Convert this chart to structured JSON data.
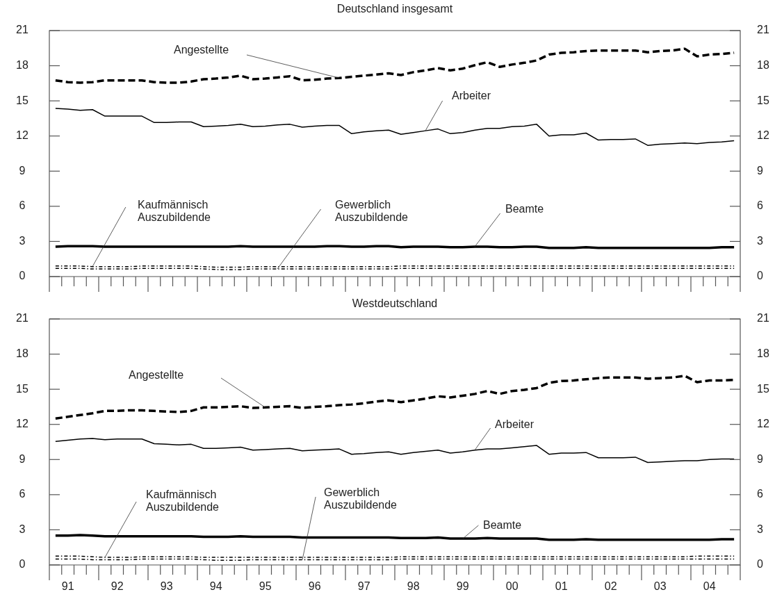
{
  "chart_data": [
    {
      "type": "line",
      "title": "Deutschland insgesamt",
      "legend": false,
      "marker": "none",
      "categories": [
        null,
        null,
        null,
        null,
        null,
        null,
        null,
        null,
        null,
        null,
        null,
        null,
        null,
        null,
        null,
        null,
        null,
        null,
        null,
        null,
        null,
        null,
        null,
        null,
        null,
        null,
        null,
        null,
        null,
        null,
        null,
        null,
        null,
        null,
        null,
        null,
        null,
        null,
        null,
        null,
        null,
        null,
        null,
        null,
        null,
        null,
        null,
        null,
        null,
        null,
        null,
        null,
        null,
        null,
        null,
        null
      ],
      "ylim": [
        0,
        21
      ],
      "yticks": [
        0,
        3,
        6,
        9,
        12,
        15,
        18,
        21
      ],
      "y2lim": [
        0,
        21
      ],
      "y2ticks": [
        0,
        3,
        6,
        9,
        12,
        15,
        18,
        21
      ],
      "series": [
        {
          "name": "Angestellte",
          "color": "#000000",
          "line_style": "dashed",
          "values": [
            16.75,
            16.6,
            16.55,
            16.6,
            16.75,
            16.75,
            16.75,
            16.75,
            16.6,
            16.55,
            16.55,
            16.65,
            16.85,
            16.9,
            17.0,
            17.15,
            16.85,
            16.9,
            17.0,
            17.1,
            16.75,
            16.8,
            16.9,
            16.95,
            17.05,
            17.15,
            17.25,
            17.35,
            17.2,
            17.45,
            17.6,
            17.8,
            17.6,
            17.75,
            18.05,
            18.3,
            17.9,
            18.1,
            18.25,
            18.45,
            18.95,
            19.1,
            19.15,
            19.25,
            19.3,
            19.3,
            19.3,
            19.3,
            19.15,
            19.25,
            19.3,
            19.45,
            18.8,
            18.95,
            19.0,
            19.1
          ]
        },
        {
          "name": "Arbeiter",
          "color": "#000000",
          "line_style": "solid",
          "values": [
            14.35,
            14.3,
            14.2,
            14.25,
            13.7,
            13.7,
            13.7,
            13.7,
            13.15,
            13.15,
            13.2,
            13.2,
            12.8,
            12.85,
            12.9,
            13.0,
            12.8,
            12.85,
            12.95,
            13.0,
            12.75,
            12.85,
            12.9,
            12.9,
            12.2,
            12.35,
            12.45,
            12.5,
            12.15,
            12.3,
            12.45,
            12.6,
            12.2,
            12.3,
            12.5,
            12.65,
            12.65,
            12.8,
            12.85,
            13.0,
            12.0,
            12.1,
            12.1,
            12.25,
            11.65,
            11.7,
            11.7,
            11.75,
            11.2,
            11.3,
            11.35,
            11.4,
            11.35,
            11.45,
            11.5,
            11.6
          ]
        },
        {
          "name": "Beamte",
          "color": "#000000",
          "line_style": "solid",
          "values": [
            2.55,
            2.6,
            2.6,
            2.6,
            2.55,
            2.55,
            2.55,
            2.55,
            2.55,
            2.55,
            2.55,
            2.55,
            2.55,
            2.55,
            2.55,
            2.6,
            2.55,
            2.55,
            2.55,
            2.55,
            2.55,
            2.55,
            2.6,
            2.6,
            2.55,
            2.55,
            2.6,
            2.6,
            2.5,
            2.55,
            2.55,
            2.55,
            2.5,
            2.5,
            2.55,
            2.55,
            2.5,
            2.5,
            2.55,
            2.55,
            2.45,
            2.45,
            2.45,
            2.5,
            2.45,
            2.45,
            2.45,
            2.45,
            2.45,
            2.45,
            2.45,
            2.45,
            2.45,
            2.45,
            2.5,
            2.5
          ]
        },
        {
          "name": "Kaufmännisch Auszubildende",
          "color": "#000000",
          "line_style": "dotted",
          "values": [
            0.9,
            0.9,
            0.9,
            0.85,
            0.85,
            0.85,
            0.85,
            0.9,
            0.9,
            0.9,
            0.9,
            0.9,
            0.85,
            0.8,
            0.8,
            0.8,
            0.85,
            0.85,
            0.85,
            0.85,
            0.85,
            0.85,
            0.85,
            0.85,
            0.85,
            0.85,
            0.85,
            0.85,
            0.9,
            0.9,
            0.9,
            0.9,
            0.9,
            0.9,
            0.9,
            0.9,
            0.9,
            0.9,
            0.9,
            0.9,
            0.9,
            0.9,
            0.9,
            0.9,
            0.9,
            0.9,
            0.9,
            0.9,
            0.9,
            0.9,
            0.9,
            0.9,
            0.9,
            0.9,
            0.9,
            0.9
          ]
        },
        {
          "name": "Gewerblich Auszubildende",
          "color": "#000000",
          "line_style": "dotted",
          "values": [
            0.7,
            0.7,
            0.7,
            0.65,
            0.65,
            0.65,
            0.65,
            0.7,
            0.7,
            0.7,
            0.7,
            0.7,
            0.65,
            0.6,
            0.6,
            0.6,
            0.65,
            0.65,
            0.65,
            0.65,
            0.65,
            0.65,
            0.65,
            0.65,
            0.65,
            0.65,
            0.65,
            0.65,
            0.7,
            0.7,
            0.7,
            0.7,
            0.7,
            0.7,
            0.7,
            0.7,
            0.7,
            0.7,
            0.7,
            0.7,
            0.7,
            0.7,
            0.7,
            0.7,
            0.7,
            0.7,
            0.7,
            0.7,
            0.7,
            0.7,
            0.7,
            0.7,
            0.7,
            0.7,
            0.7,
            0.7
          ]
        }
      ]
    },
    {
      "type": "line",
      "title": "Westdeutschland",
      "legend": false,
      "marker": "none",
      "categories": [
        null,
        "91",
        null,
        null,
        null,
        "92",
        null,
        null,
        null,
        "93",
        null,
        null,
        null,
        "94",
        null,
        null,
        null,
        "95",
        null,
        null,
        null,
        "96",
        null,
        null,
        null,
        "97",
        null,
        null,
        null,
        "98",
        null,
        null,
        null,
        "99",
        null,
        null,
        null,
        "00",
        null,
        null,
        null,
        "01",
        null,
        null,
        null,
        "02",
        null,
        null,
        null,
        "03",
        null,
        null,
        null,
        "04",
        null,
        null
      ],
      "ylim": [
        0,
        21
      ],
      "yticks": [
        0,
        3,
        6,
        9,
        12,
        15,
        18,
        21
      ],
      "y2lim": [
        0,
        21
      ],
      "y2ticks": [
        0,
        3,
        6,
        9,
        12,
        15,
        18,
        21
      ],
      "series": [
        {
          "name": "Angestellte",
          "color": "#000000",
          "line_style": "dashed",
          "values": [
            12.5,
            12.65,
            12.8,
            12.95,
            13.15,
            13.15,
            13.2,
            13.2,
            13.15,
            13.1,
            13.05,
            13.15,
            13.45,
            13.45,
            13.5,
            13.55,
            13.4,
            13.45,
            13.5,
            13.55,
            13.4,
            13.5,
            13.55,
            13.65,
            13.7,
            13.8,
            13.95,
            14.05,
            13.9,
            14.05,
            14.2,
            14.4,
            14.3,
            14.45,
            14.6,
            14.85,
            14.6,
            14.85,
            14.95,
            15.1,
            15.55,
            15.7,
            15.75,
            15.85,
            15.95,
            16.0,
            16.0,
            16.0,
            15.9,
            15.95,
            16.0,
            16.15,
            15.6,
            15.75,
            15.75,
            15.8
          ]
        },
        {
          "name": "Arbeiter",
          "color": "#000000",
          "line_style": "solid",
          "values": [
            10.55,
            10.65,
            10.75,
            10.8,
            10.7,
            10.75,
            10.75,
            10.75,
            10.35,
            10.3,
            10.25,
            10.3,
            9.95,
            9.95,
            10.0,
            10.05,
            9.8,
            9.85,
            9.9,
            9.95,
            9.75,
            9.8,
            9.85,
            9.9,
            9.45,
            9.5,
            9.6,
            9.65,
            9.45,
            9.6,
            9.7,
            9.8,
            9.55,
            9.65,
            9.8,
            9.9,
            9.9,
            10.0,
            10.1,
            10.2,
            9.45,
            9.55,
            9.55,
            9.6,
            9.15,
            9.15,
            9.15,
            9.2,
            8.75,
            8.8,
            8.85,
            8.9,
            8.9,
            9.0,
            9.05,
            9.05
          ]
        },
        {
          "name": "Beamte",
          "color": "#000000",
          "line_style": "solid",
          "values": [
            2.5,
            2.5,
            2.55,
            2.5,
            2.45,
            2.45,
            2.45,
            2.45,
            2.45,
            2.45,
            2.45,
            2.45,
            2.4,
            2.4,
            2.4,
            2.45,
            2.4,
            2.4,
            2.4,
            2.4,
            2.35,
            2.35,
            2.35,
            2.35,
            2.35,
            2.35,
            2.35,
            2.35,
            2.3,
            2.3,
            2.3,
            2.35,
            2.25,
            2.25,
            2.25,
            2.3,
            2.25,
            2.25,
            2.25,
            2.25,
            2.15,
            2.15,
            2.15,
            2.2,
            2.15,
            2.15,
            2.15,
            2.15,
            2.15,
            2.15,
            2.15,
            2.15,
            2.15,
            2.15,
            2.2,
            2.2
          ]
        },
        {
          "name": "Kaufmännisch Auszubildende",
          "color": "#000000",
          "line_style": "dotted",
          "values": [
            0.75,
            0.75,
            0.75,
            0.7,
            0.65,
            0.65,
            0.65,
            0.7,
            0.7,
            0.7,
            0.7,
            0.7,
            0.65,
            0.65,
            0.65,
            0.65,
            0.65,
            0.65,
            0.65,
            0.65,
            0.65,
            0.65,
            0.65,
            0.65,
            0.65,
            0.65,
            0.65,
            0.65,
            0.7,
            0.7,
            0.7,
            0.7,
            0.7,
            0.7,
            0.7,
            0.7,
            0.7,
            0.7,
            0.7,
            0.7,
            0.7,
            0.7,
            0.7,
            0.7,
            0.7,
            0.7,
            0.7,
            0.7,
            0.7,
            0.7,
            0.7,
            0.7,
            0.75,
            0.75,
            0.75,
            0.75
          ]
        },
        {
          "name": "Gewerblich Auszubildende",
          "color": "#000000",
          "line_style": "dotted",
          "values": [
            0.5,
            0.5,
            0.5,
            0.45,
            0.45,
            0.45,
            0.45,
            0.5,
            0.5,
            0.5,
            0.5,
            0.5,
            0.45,
            0.4,
            0.4,
            0.4,
            0.45,
            0.45,
            0.45,
            0.45,
            0.45,
            0.45,
            0.45,
            0.45,
            0.45,
            0.45,
            0.45,
            0.45,
            0.5,
            0.5,
            0.5,
            0.5,
            0.5,
            0.5,
            0.5,
            0.5,
            0.5,
            0.5,
            0.5,
            0.5,
            0.5,
            0.5,
            0.5,
            0.5,
            0.5,
            0.5,
            0.5,
            0.5,
            0.5,
            0.5,
            0.5,
            0.5,
            0.5,
            0.5,
            0.5,
            0.5
          ]
        }
      ]
    }
  ]
}
